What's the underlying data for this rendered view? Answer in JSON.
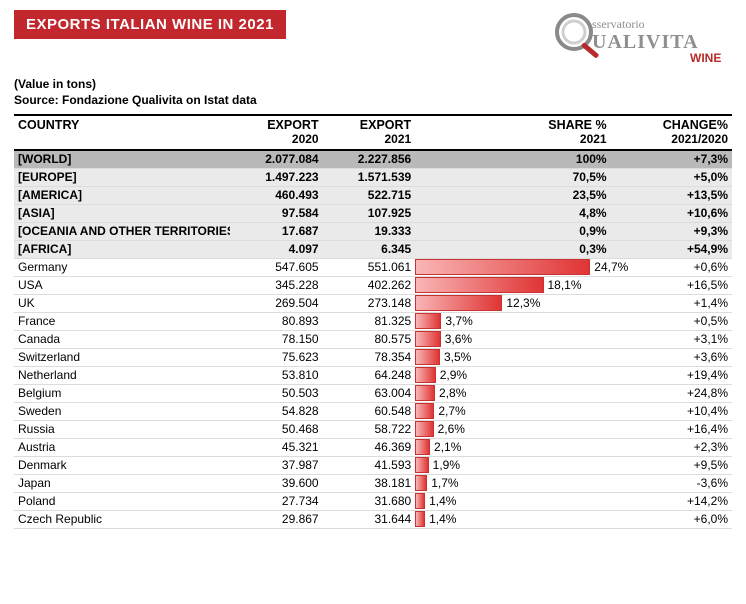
{
  "header": {
    "title": "EXPORTS ITALIAN WINE IN 2021",
    "value_note": "(Value in tons)",
    "source_note": "Source: Fondazione Qualivita on Istat data"
  },
  "logo": {
    "top_text": "sservatorio",
    "main_text": "UALIVITA",
    "sub_text": "WINE",
    "ring_color": "#8a8a8a",
    "ring_inner": "#cfcfcf",
    "handle_color": "#b82b2b",
    "text_color": "#8f8f8f",
    "wine_color": "#b82b2b"
  },
  "columns": {
    "country": "COUNTRY",
    "export2020_top": "EXPORT",
    "export2020_sub": "2020",
    "export2021_top": "EXPORT",
    "export2021_sub": "2021",
    "share_top": "SHARE %",
    "share_sub": "2021",
    "change_top": "CHANGE%",
    "change_sub": "2021/2020"
  },
  "chart": {
    "share_max_pct": 27,
    "bar_start_color": "#f9b6b6",
    "bar_end_color": "#e03434",
    "bar_border": "#c83232"
  },
  "rows": [
    {
      "kind": "world",
      "country": "[WORLD]",
      "e20": "2.077.084",
      "e21": "2.227.856",
      "share_txt": "100%",
      "share_pct": 100,
      "change": "+7,3%"
    },
    {
      "kind": "region",
      "country": "[EUROPE]",
      "e20": "1.497.223",
      "e21": "1.571.539",
      "share_txt": "70,5%",
      "share_pct": 70.5,
      "change": "+5,0%"
    },
    {
      "kind": "region",
      "country": "[AMERICA]",
      "e20": "460.493",
      "e21": "522.715",
      "share_txt": "23,5%",
      "share_pct": 23.5,
      "change": "+13,5%"
    },
    {
      "kind": "region",
      "country": "[ASIA]",
      "e20": "97.584",
      "e21": "107.925",
      "share_txt": "4,8%",
      "share_pct": 4.8,
      "change": "+10,6%"
    },
    {
      "kind": "region",
      "country": "[OCEANIA AND OTHER TERRITORIES]",
      "e20": "17.687",
      "e21": "19.333",
      "share_txt": "0,9%",
      "share_pct": 0.9,
      "change": "+9,3%"
    },
    {
      "kind": "region",
      "country": "[AFRICA]",
      "e20": "4.097",
      "e21": "6.345",
      "share_txt": "0,3%",
      "share_pct": 0.3,
      "change": "+54,9%"
    },
    {
      "kind": "country",
      "country": "Germany",
      "e20": "547.605",
      "e21": "551.061",
      "share_txt": "24,7%",
      "share_pct": 24.7,
      "change": "+0,6%"
    },
    {
      "kind": "country",
      "country": "USA",
      "e20": "345.228",
      "e21": "402.262",
      "share_txt": "18,1%",
      "share_pct": 18.1,
      "change": "+16,5%"
    },
    {
      "kind": "country",
      "country": "UK",
      "e20": "269.504",
      "e21": "273.148",
      "share_txt": "12,3%",
      "share_pct": 12.3,
      "change": "+1,4%"
    },
    {
      "kind": "country",
      "country": "France",
      "e20": "80.893",
      "e21": "81.325",
      "share_txt": "3,7%",
      "share_pct": 3.7,
      "change": "+0,5%"
    },
    {
      "kind": "country",
      "country": "Canada",
      "e20": "78.150",
      "e21": "80.575",
      "share_txt": "3,6%",
      "share_pct": 3.6,
      "change": "+3,1%"
    },
    {
      "kind": "country",
      "country": "Switzerland",
      "e20": "75.623",
      "e21": "78.354",
      "share_txt": "3,5%",
      "share_pct": 3.5,
      "change": "+3,6%"
    },
    {
      "kind": "country",
      "country": "Netherland",
      "e20": "53.810",
      "e21": "64.248",
      "share_txt": "2,9%",
      "share_pct": 2.9,
      "change": "+19,4%"
    },
    {
      "kind": "country",
      "country": "Belgium",
      "e20": "50.503",
      "e21": "63.004",
      "share_txt": "2,8%",
      "share_pct": 2.8,
      "change": "+24,8%"
    },
    {
      "kind": "country",
      "country": "Sweden",
      "e20": "54.828",
      "e21": "60.548",
      "share_txt": "2,7%",
      "share_pct": 2.7,
      "change": "+10,4%"
    },
    {
      "kind": "country",
      "country": "Russia",
      "e20": "50.468",
      "e21": "58.722",
      "share_txt": "2,6%",
      "share_pct": 2.6,
      "change": "+16,4%"
    },
    {
      "kind": "country",
      "country": "Austria",
      "e20": "45.321",
      "e21": "46.369",
      "share_txt": "2,1%",
      "share_pct": 2.1,
      "change": "+2,3%"
    },
    {
      "kind": "country",
      "country": "Denmark",
      "e20": "37.987",
      "e21": "41.593",
      "share_txt": "1,9%",
      "share_pct": 1.9,
      "change": "+9,5%"
    },
    {
      "kind": "country",
      "country": "Japan",
      "e20": "39.600",
      "e21": "38.181",
      "share_txt": "1,7%",
      "share_pct": 1.7,
      "change": "-3,6%"
    },
    {
      "kind": "country",
      "country": "Poland",
      "e20": "27.734",
      "e21": "31.680",
      "share_txt": "1,4%",
      "share_pct": 1.4,
      "change": "+14,2%"
    },
    {
      "kind": "country",
      "country": "Czech Republic",
      "e20": "29.867",
      "e21": "31.644",
      "share_txt": "1,4%",
      "share_pct": 1.4,
      "change": "+6,0%"
    }
  ]
}
